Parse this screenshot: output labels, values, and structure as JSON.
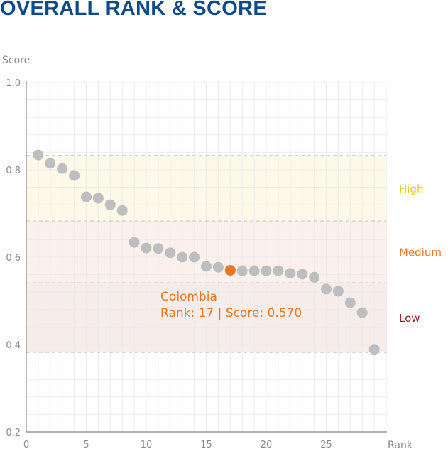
{
  "title": "OVERALL RANK & SCORE",
  "chart_data": {
    "type": "scatter",
    "xlabel": "Rank",
    "ylabel": "Score",
    "xlim": [
      0,
      30
    ],
    "ylim": [
      0.2,
      1.0
    ],
    "xticks": [
      0,
      5,
      10,
      15,
      20,
      25
    ],
    "yticks": [
      0.2,
      0.4,
      0.6,
      0.8,
      1.0
    ],
    "ytick_labels": [
      "0.2",
      "0.4",
      "0.6",
      "0.8",
      "1.0"
    ],
    "grid": true,
    "point_color": "#bdbec0",
    "highlight_color": "#e87722",
    "bands": [
      {
        "label": "High",
        "from": 0.683,
        "to": 0.833,
        "fill": "#fdf9e8",
        "label_color": "#f2c81c"
      },
      {
        "label": "Medium",
        "from": 0.541,
        "to": 0.683,
        "fill": "#fcf0ec",
        "label_color": "#e87722"
      },
      {
        "label": "Low",
        "from": 0.382,
        "to": 0.541,
        "fill": "#f6ecea",
        "label_color": "#9b1c2c"
      }
    ],
    "x": [
      1,
      2,
      3,
      4,
      5,
      6,
      7,
      8,
      9,
      10,
      11,
      12,
      13,
      14,
      15,
      16,
      17,
      18,
      19,
      20,
      21,
      22,
      23,
      24,
      25,
      26,
      27,
      28,
      29
    ],
    "y": [
      0.834,
      0.815,
      0.803,
      0.787,
      0.738,
      0.735,
      0.72,
      0.707,
      0.634,
      0.621,
      0.62,
      0.61,
      0.6,
      0.6,
      0.579,
      0.577,
      0.57,
      0.569,
      0.569,
      0.569,
      0.569,
      0.563,
      0.561,
      0.554,
      0.527,
      0.522,
      0.496,
      0.473,
      0.389
    ],
    "highlight": {
      "rank": 17,
      "score": 0.57,
      "name": "Colombia",
      "label": "Rank: 17  |  Score: 0.570"
    }
  }
}
